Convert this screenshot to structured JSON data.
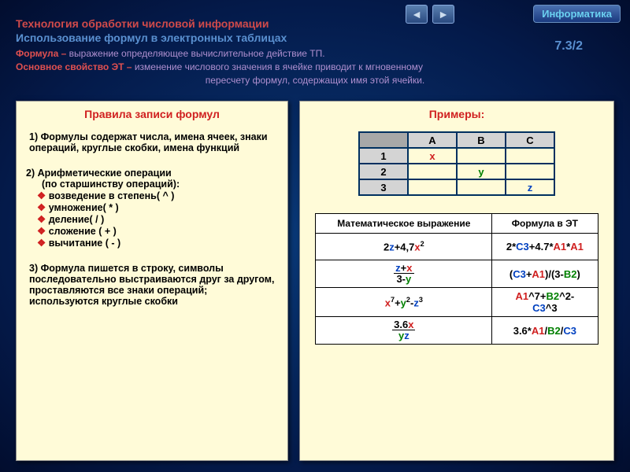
{
  "nav": {
    "prev": "◄",
    "next": "►",
    "info": "Информатика"
  },
  "header": {
    "title1": "Технология обработки числовой информации",
    "title2": "Использование формул в электронных таблицах",
    "page": "7.3/2",
    "intro1_label": "Формула –",
    "intro1_text": " выражение определяющее вычислительное действие ТП.",
    "intro2_label": "Основное свойство ЭТ –",
    "intro2_text_a": " изменение числового значения в ячейке приводит к мгновенному",
    "intro2_text_b": "пересчету                                           формул, содержащих имя этой ячейки."
  },
  "left": {
    "title": "Правила записи формул",
    "r1": "1) Формулы содержат числа, имена ячеек, знаки операций, круглые скобки, имена функций",
    "r2_head": "2) Арифметические операции",
    "r2_sub": "(по старшинству операций):",
    "ops": [
      "возведение в степень( ^ )",
      "умножение( * )",
      "деление( / )",
      "сложение ( + )",
      "вычитание ( - )"
    ],
    "r3": "3) Формула пишется в строку, символы последовательно выстраиваются друг за другом, проставляются все знаки операций; используются круглые скобки"
  },
  "right": {
    "title": "Примеры:",
    "sheet": {
      "cols": [
        "A",
        "B",
        "C"
      ],
      "rows": [
        "1",
        "2",
        "3"
      ],
      "cells": {
        "A1": "x",
        "B2": "y",
        "C3": "z"
      },
      "colors": {
        "A1": "c-red",
        "B2": "c-green",
        "C3": "c-blue"
      }
    },
    "formulaHeaders": [
      "Математическое выражение",
      "Формула в ЭТ"
    ]
  }
}
